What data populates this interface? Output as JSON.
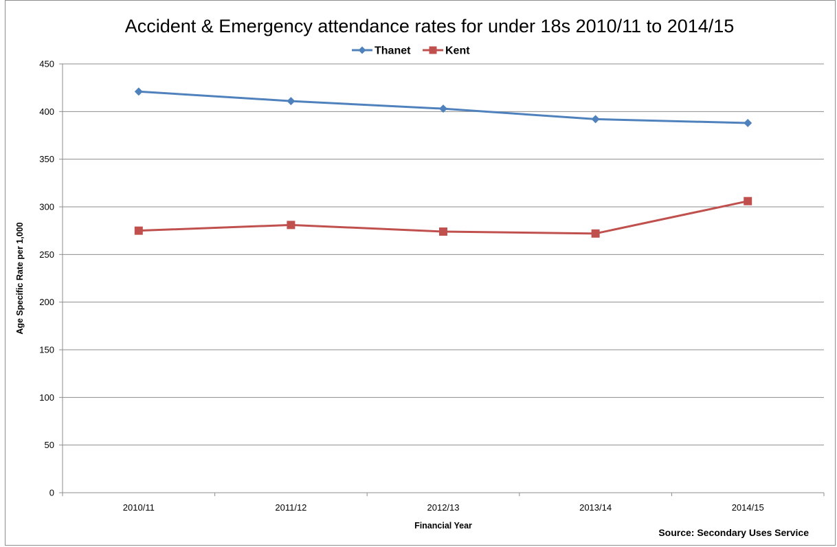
{
  "chart_data": {
    "type": "line",
    "title": "Accident & Emergency attendance rates for under 18s  2010/11 to 2014/15",
    "xlabel": "Financial Year",
    "ylabel": "Age Specific Rate per 1,000",
    "categories": [
      "2010/11",
      "2011/12",
      "2012/13",
      "2013/14",
      "2014/15"
    ],
    "ylim": [
      0,
      450
    ],
    "yticks": [
      0,
      50,
      100,
      150,
      200,
      250,
      300,
      350,
      400,
      450
    ],
    "grid": true,
    "legend_position": "top",
    "series": [
      {
        "name": "Thanet",
        "values": [
          421,
          411,
          403,
          392,
          388
        ],
        "color": "#4f81bd",
        "marker": "diamond"
      },
      {
        "name": "Kent",
        "values": [
          275,
          281,
          274,
          272,
          306
        ],
        "color": "#c0504d",
        "marker": "square"
      }
    ],
    "source": "Source: Secondary Uses Service"
  }
}
